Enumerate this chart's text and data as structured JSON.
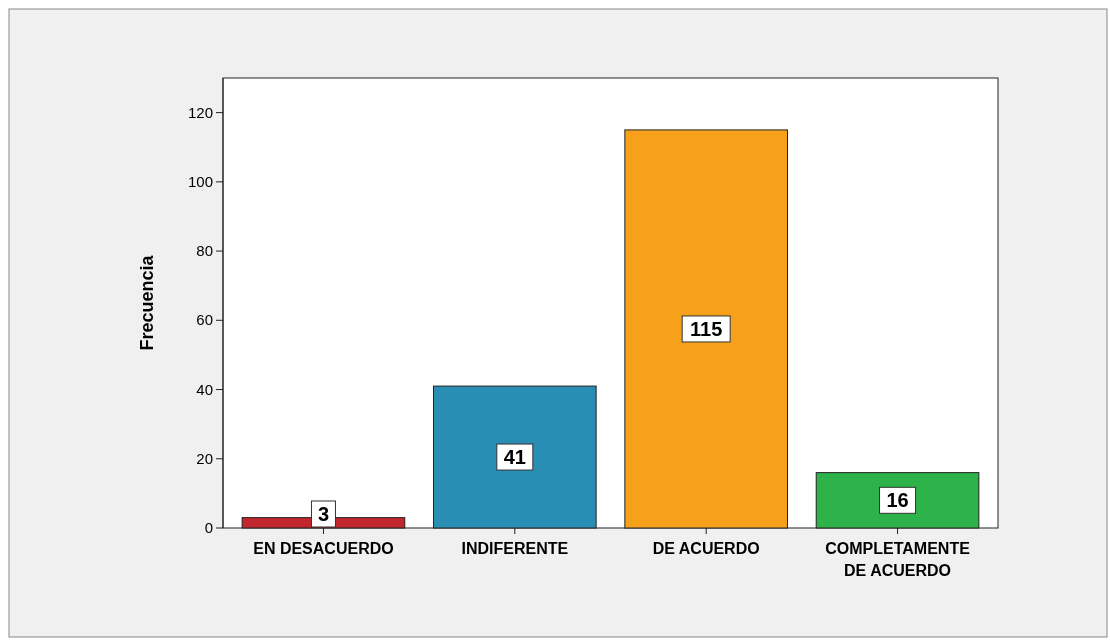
{
  "chart_data": {
    "type": "bar",
    "ylabel": "Frecuencia",
    "categories": [
      "EN DESACUERDO",
      "INDIFERENTE",
      "DE ACUERDO",
      "COMPLETAMENTE DE ACUERDO"
    ],
    "values": [
      3,
      41,
      115,
      16
    ],
    "colors": [
      "#c1272d",
      "#2a8db3",
      "#f7a11a",
      "#2eb34a"
    ],
    "ylim": [
      0,
      130
    ],
    "yticks": [
      0,
      20,
      40,
      60,
      80,
      100,
      120
    ],
    "data_labels": true
  }
}
